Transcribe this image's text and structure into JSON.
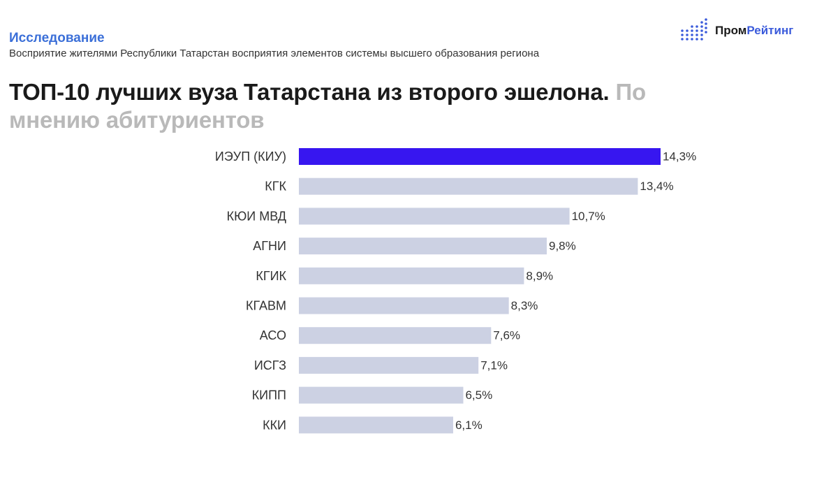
{
  "header": {
    "section_label": "Исследование",
    "subtitle": "Восприятие жителями Республики Татарстан восприятия элементов системы высшего образования региона",
    "headline": "ТОП-10 лучших вуза Татарстана из второго эшелона.",
    "headline_muted": "По мнению абитуриентов"
  },
  "logo": {
    "icon": "dot-grid-logo-icon",
    "text_part1": "Пром",
    "text_part2": "Рейтинг"
  },
  "colors": {
    "highlight_bar": "#3716f0",
    "bar": "#ccd1e3",
    "accent": "#3b6fd8"
  },
  "chart_data": {
    "type": "bar",
    "orientation": "horizontal",
    "title": "ТОП-10 лучших вуза Татарстана из второго эшелона. По мнению абитуриентов",
    "categories": [
      "ИЭУП (КИУ)",
      "КГК",
      "КЮИ МВД",
      "АГНИ",
      "КГИК",
      "КГАВМ",
      "АСО",
      "ИСГЗ",
      "КИПП",
      "ККИ"
    ],
    "values": [
      14.3,
      13.4,
      10.7,
      9.8,
      8.9,
      8.3,
      7.6,
      7.1,
      6.5,
      6.1
    ],
    "value_labels": [
      "14,3%",
      "13,4%",
      "10,7%",
      "9,8%",
      "8,9%",
      "8,3%",
      "7,6%",
      "7,1%",
      "6,5%",
      "6,1%"
    ],
    "highlighted_index": 0,
    "xlim": [
      0,
      14.3
    ],
    "grid": false,
    "legend": "none"
  }
}
